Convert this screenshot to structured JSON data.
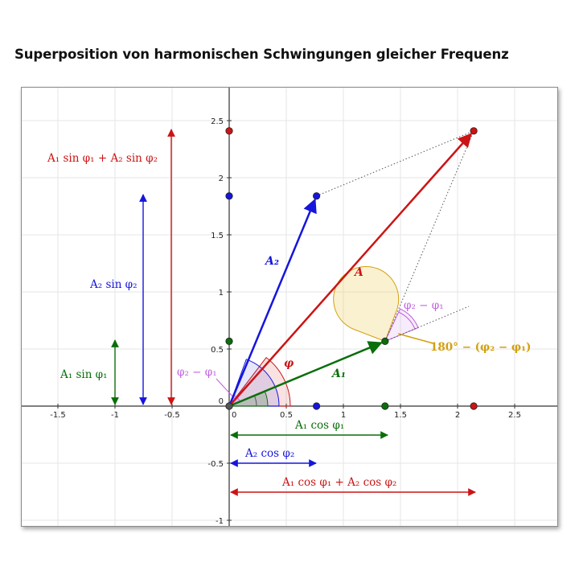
{
  "title": "Superposition von harmonischen Schwingungen gleicher Frequenz",
  "axes": {
    "x_ticks": [
      "-1.5",
      "-1",
      "-0.5",
      "0",
      "0.5",
      "1",
      "1.5",
      "2",
      "2.5"
    ],
    "y_ticks": [
      "-1",
      "-0.5",
      "0",
      "0.5",
      "1",
      "1.5",
      "2",
      "2.5"
    ]
  },
  "colors": {
    "A1": "#0a6e0a",
    "A2": "#1515dd",
    "A": "#cc1414",
    "phi_diff": "#c060e0",
    "angle180": "#d4a010",
    "grid": "#e6e6e6"
  },
  "vectors": {
    "A1": {
      "label": "A₁",
      "x": 1.38,
      "y": 0.57
    },
    "A2": {
      "label": "A₂",
      "x": 0.76,
      "y": 1.84
    },
    "A": {
      "label": "A",
      "x": 2.14,
      "y": 2.41
    }
  },
  "labels": {
    "sum_sin": "A₁ sin φ₁ + A₂ sin φ₂",
    "a2_sin": "A₂ sin φ₂",
    "a1_sin": "A₁ sin φ₁",
    "phi_diff_origin": "φ₂ − φ₁",
    "phi_diff_tip": "φ₂ − φ₁",
    "phi": "φ",
    "angle180": "180° − (φ₂ − φ₁)",
    "a1_cos": "A₁ cos φ₁",
    "a2_cos": "A₂ cos φ₂",
    "sum_cos": "A₁ cos φ₁ + A₂ cos φ₂"
  }
}
